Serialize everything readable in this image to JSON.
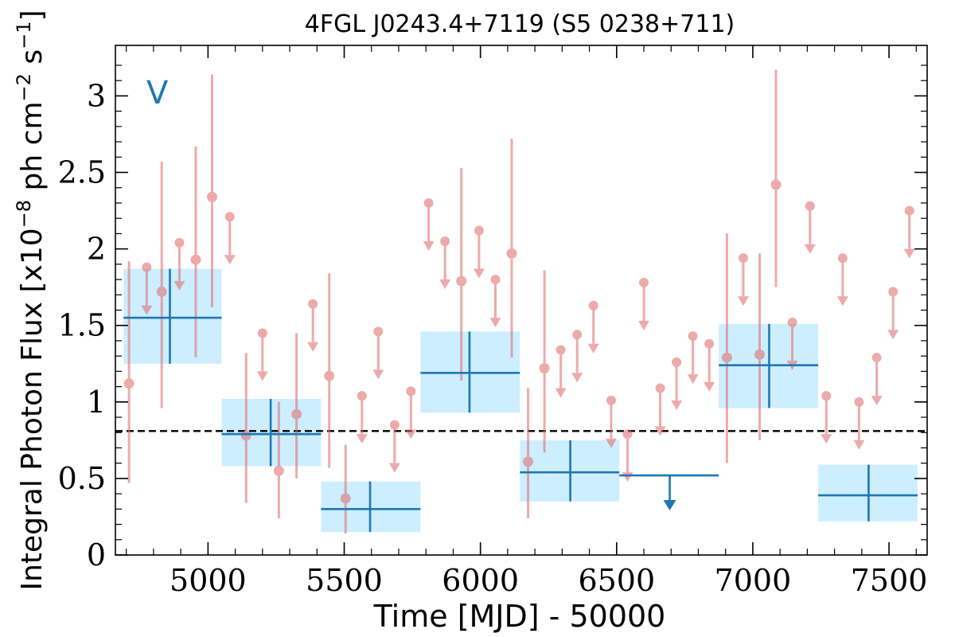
{
  "chart_data": {
    "type": "scatter",
    "title": "4FGL J0243.4+7119 (S5 0238+711)",
    "xlabel": "Time [MJD] - 50000",
    "ylabel_main": "Integral Photon Flux [x10",
    "ylabel_exp1": "−8",
    "ylabel_mid": " ph cm",
    "ylabel_exp2": "−2",
    "ylabel_s": " s",
    "ylabel_exp3": "−1",
    "ylabel_end": "]",
    "annotation": "V",
    "xlim": [
      4660,
      7640
    ],
    "ylim": [
      0,
      3.33
    ],
    "xticks": [
      5000,
      5500,
      6000,
      6500,
      7000,
      7500
    ],
    "xtick_labels": [
      "5000",
      "5500",
      "6000",
      "6500",
      "7000",
      "7500"
    ],
    "yticks": [
      0,
      0.5,
      1,
      1.5,
      2,
      2.5,
      3
    ],
    "ytick_labels": [
      "0",
      "0.5",
      "1",
      "1.5",
      "2",
      "2.5",
      "3"
    ],
    "average_flux": 0.81,
    "colors": {
      "red": "#e06666",
      "blue": "#1f77b4",
      "band": "#cdeeff",
      "dashed": "#000000"
    },
    "series": [
      {
        "kind": "short-bin detections",
        "points": [
          {
            "x": 4710,
            "y": 1.12,
            "lo": 0.47,
            "hi": 1.92
          },
          {
            "x": 4830,
            "y": 1.72,
            "lo": 0.96,
            "hi": 2.57
          },
          {
            "x": 4955,
            "y": 1.93,
            "lo": 1.29,
            "hi": 2.67
          },
          {
            "x": 5015,
            "y": 2.34,
            "lo": 1.62,
            "hi": 3.14
          },
          {
            "x": 5140,
            "y": 0.78,
            "lo": 0.34,
            "hi": 1.32
          },
          {
            "x": 5260,
            "y": 0.55,
            "lo": 0.24,
            "hi": 1.0
          },
          {
            "x": 5325,
            "y": 0.92,
            "lo": 0.5,
            "hi": 1.45
          },
          {
            "x": 5445,
            "y": 1.17,
            "lo": 0.57,
            "hi": 1.84
          },
          {
            "x": 5505,
            "y": 0.37,
            "lo": 0.14,
            "hi": 0.72
          },
          {
            "x": 5930,
            "y": 1.79,
            "lo": 1.14,
            "hi": 2.53
          },
          {
            "x": 6115,
            "y": 1.97,
            "lo": 1.29,
            "hi": 2.72
          },
          {
            "x": 6175,
            "y": 0.61,
            "lo": 0.24,
            "hi": 1.09
          },
          {
            "x": 6235,
            "y": 1.22,
            "lo": 0.67,
            "hi": 1.86
          },
          {
            "x": 6905,
            "y": 1.29,
            "lo": 0.6,
            "hi": 2.1
          },
          {
            "x": 7025,
            "y": 1.31,
            "lo": 0.75,
            "hi": 1.97
          },
          {
            "x": 7085,
            "y": 2.42,
            "lo": 1.75,
            "hi": 3.17
          }
        ]
      },
      {
        "kind": "short-bin upper limits",
        "points": [
          {
            "x": 4775,
            "y": 1.88
          },
          {
            "x": 4895,
            "y": 2.04
          },
          {
            "x": 5080,
            "y": 2.21
          },
          {
            "x": 5200,
            "y": 1.45
          },
          {
            "x": 5385,
            "y": 1.64
          },
          {
            "x": 5565,
            "y": 1.04
          },
          {
            "x": 5625,
            "y": 1.46
          },
          {
            "x": 5685,
            "y": 0.85
          },
          {
            "x": 5745,
            "y": 1.07
          },
          {
            "x": 5810,
            "y": 2.3
          },
          {
            "x": 5870,
            "y": 2.05
          },
          {
            "x": 5995,
            "y": 2.12
          },
          {
            "x": 6055,
            "y": 1.8
          },
          {
            "x": 6295,
            "y": 1.34
          },
          {
            "x": 6355,
            "y": 1.44
          },
          {
            "x": 6415,
            "y": 1.63
          },
          {
            "x": 6480,
            "y": 1.01
          },
          {
            "x": 6540,
            "y": 0.79
          },
          {
            "x": 6600,
            "y": 1.78
          },
          {
            "x": 6660,
            "y": 1.09
          },
          {
            "x": 6720,
            "y": 1.26
          },
          {
            "x": 6780,
            "y": 1.43
          },
          {
            "x": 6840,
            "y": 1.38
          },
          {
            "x": 6965,
            "y": 1.94
          },
          {
            "x": 7145,
            "y": 1.52
          },
          {
            "x": 7210,
            "y": 2.28
          },
          {
            "x": 7270,
            "y": 1.04
          },
          {
            "x": 7330,
            "y": 1.94
          },
          {
            "x": 7390,
            "y": 1.0
          },
          {
            "x": 7455,
            "y": 1.29
          },
          {
            "x": 7515,
            "y": 1.72
          },
          {
            "x": 7575,
            "y": 2.25
          }
        ]
      },
      {
        "kind": "long-bin detections",
        "points": [
          {
            "x": 4860,
            "xlo": 4690,
            "xhi": 5050,
            "y": 1.55,
            "lo": 1.25,
            "hi": 1.87
          },
          {
            "x": 5230,
            "xlo": 5050,
            "xhi": 5415,
            "y": 0.79,
            "lo": 0.58,
            "hi": 1.02
          },
          {
            "x": 5595,
            "xlo": 5415,
            "xhi": 5780,
            "y": 0.3,
            "lo": 0.15,
            "hi": 0.48
          },
          {
            "x": 5960,
            "xlo": 5780,
            "xhi": 6145,
            "y": 1.19,
            "lo": 0.93,
            "hi": 1.46
          },
          {
            "x": 6330,
            "xlo": 6145,
            "xhi": 6510,
            "y": 0.54,
            "lo": 0.35,
            "hi": 0.75
          },
          {
            "x": 7060,
            "xlo": 6875,
            "xhi": 7240,
            "y": 1.24,
            "lo": 0.96,
            "hi": 1.51
          },
          {
            "x": 7425,
            "xlo": 7240,
            "xhi": 7605,
            "y": 0.39,
            "lo": 0.22,
            "hi": 0.59
          }
        ]
      },
      {
        "kind": "long-bin upper limits",
        "points": [
          {
            "x": 6695,
            "xlo": 6510,
            "xhi": 6875,
            "y": 0.52
          }
        ]
      }
    ]
  }
}
